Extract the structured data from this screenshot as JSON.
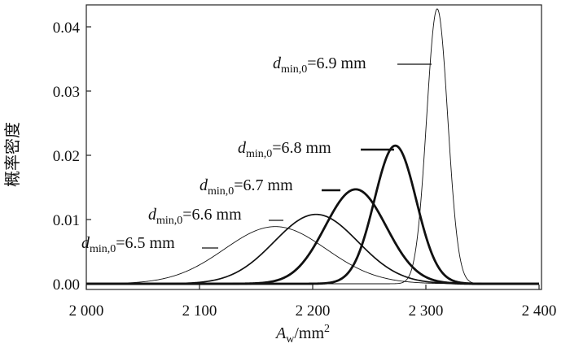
{
  "chart_data": {
    "type": "line",
    "xlabel": {
      "main": "A",
      "sub": "w",
      "rest": "/mm",
      "sup": "2"
    },
    "ylabel": "概率密度",
    "xlim": [
      2000,
      2400
    ],
    "ylim": [
      0,
      0.04
    ],
    "x_ticks": [
      2000,
      2100,
      2200,
      2300,
      2400
    ],
    "x_tick_labels": [
      "2 000",
      "2 100",
      "2 200",
      "2 300",
      "2 400"
    ],
    "y_ticks": [
      0,
      0.01,
      0.02,
      0.03,
      0.04
    ],
    "y_tick_labels": [
      "0.00",
      "0.01",
      "0.02",
      "0.03",
      "0.04"
    ],
    "grid": false,
    "series": [
      {
        "name": "6.5 mm",
        "label_main": "d",
        "label_sub": "min,0",
        "label_rest": "=6.5 mm",
        "mean": 2167,
        "sd": 45,
        "peak": 0.0089,
        "weight": "thin"
      },
      {
        "name": "6.6 mm",
        "label_main": "d",
        "label_sub": "min,0",
        "label_rest": "=6.6 mm",
        "mean": 2203,
        "sd": 37,
        "peak": 0.0108,
        "weight": "medium"
      },
      {
        "name": "6.7 mm",
        "label_main": "d",
        "label_sub": "min,0",
        "label_rest": "=6.7 mm",
        "mean": 2238,
        "sd": 27,
        "peak": 0.0147,
        "weight": "thick"
      },
      {
        "name": "6.8 mm",
        "label_main": "d",
        "label_sub": "min,0",
        "label_rest": "=6.8 mm",
        "mean": 2273,
        "sd": 18.5,
        "peak": 0.0215,
        "weight": "thick"
      },
      {
        "name": "6.9 mm",
        "label_main": "d",
        "label_sub": "min,0",
        "label_rest": "=6.9 mm",
        "mean": 2310,
        "sd": 9.3,
        "peak": 0.0428,
        "weight": "thin"
      }
    ]
  }
}
